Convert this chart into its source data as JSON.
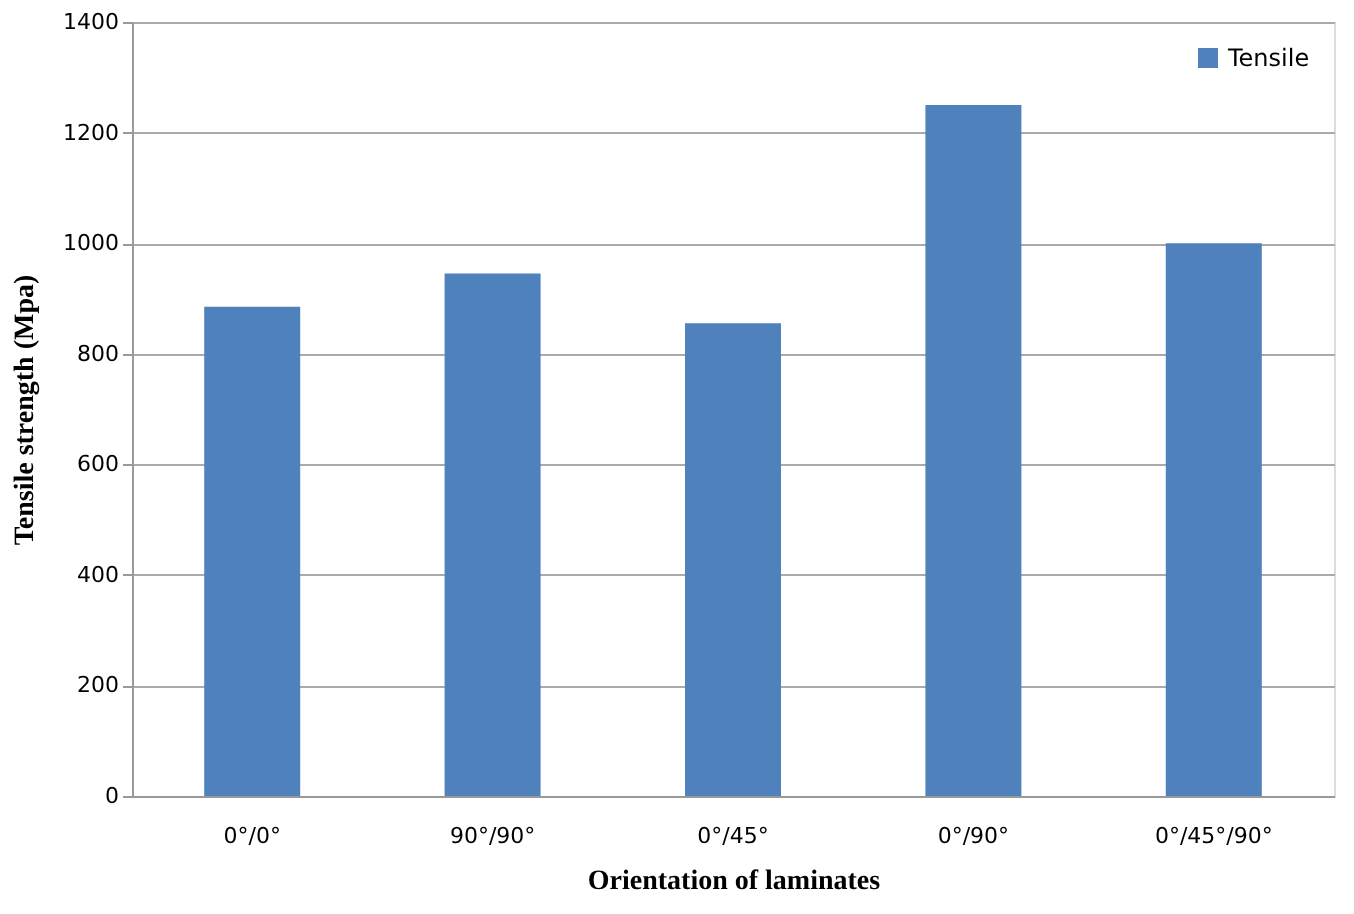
{
  "chart_data": {
    "type": "bar",
    "xlabel": "Orientation of laminates",
    "ylabel": "Tensile strength (Mpa)",
    "categories": [
      "0°/0°",
      "90°/90°",
      "0°/45°",
      "0°/90°",
      "0°/45°/90°"
    ],
    "series": [
      {
        "name": "Tensile",
        "color": "#4f81bd",
        "values": [
          885,
          945,
          855,
          1250,
          1000
        ]
      }
    ],
    "ylim": [
      0,
      1400
    ],
    "yticks": [
      0,
      200,
      400,
      600,
      800,
      1000,
      1200,
      1400
    ],
    "grid": "y",
    "legend": "top right"
  }
}
